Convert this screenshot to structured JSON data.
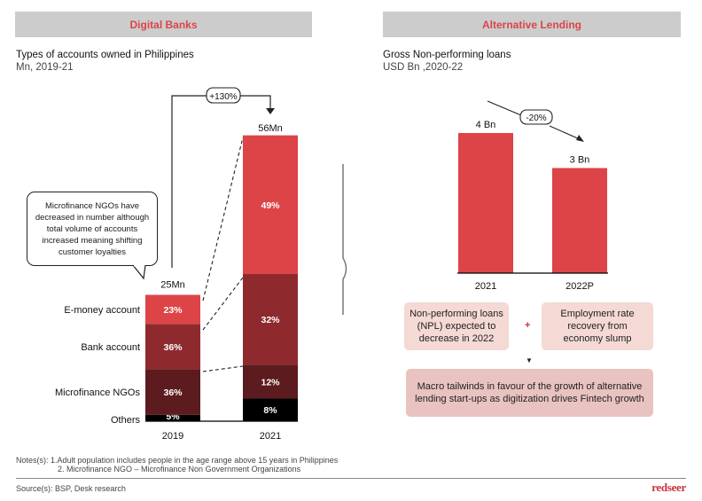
{
  "left_panel": {
    "header": "Digital Banks",
    "title": "Types of accounts owned in Philippines",
    "subtitle": "Mn, 2019-21",
    "callout_text": "Microfinance NGOs have decreased in number although total volume of accounts increased meaning shifting customer loyalties",
    "growth_label": "+130%"
  },
  "right_panel": {
    "header": "Alternative Lending",
    "title": "Gross Non-performing loans",
    "subtitle": "USD Bn ,2020-22",
    "change_label": "-20%",
    "box_npl": "Non-performing loans (NPL) expected to decrease in 2022",
    "plus_sign": "+",
    "box_employment": "Employment rate recovery  from economy slump",
    "down_arrow": "▼",
    "box_macro": "Macro tailwinds in favour of the growth of alternative lending start-ups as digitization drives Fintech growth"
  },
  "footer": {
    "notes_label": "Notes(s):",
    "note_1": "1.Adult population includes people in the age range above 15 years in Philippines",
    "note_2": "2. Microfinance NGO – Microfinance Non Government Organizations",
    "source": "Source(s): BSP, Desk research",
    "logo": "redseer"
  },
  "colors": {
    "emoney": "#dd4448",
    "bank": "#8e2a2e",
    "ngo": "#5c1b1e",
    "others": "#000000",
    "npl_bar": "#dd4448",
    "header_bg": "#cccccc",
    "header_text": "#d9454a"
  },
  "chart_data": [
    {
      "type": "bar",
      "stacked": true,
      "title": "Types of accounts owned in Philippines",
      "subtitle": "Mn, 2019-21",
      "categories": [
        "2019",
        "2021"
      ],
      "totals": [
        25,
        56
      ],
      "total_labels": [
        "25Mn",
        "56Mn"
      ],
      "series": [
        {
          "name": "Others",
          "values": [
            5,
            8
          ],
          "labels": [
            "5%",
            "8%"
          ],
          "color": "#000000"
        },
        {
          "name": "Microfinance NGOs",
          "values": [
            36,
            12
          ],
          "labels": [
            "36%",
            "12%"
          ],
          "color": "#5c1b1e"
        },
        {
          "name": "Bank account",
          "values": [
            36,
            32
          ],
          "labels": [
            "36%",
            "32%"
          ],
          "color": "#8e2a2e"
        },
        {
          "name": "E-money account",
          "values": [
            23,
            49
          ],
          "labels": [
            "23%",
            "49%"
          ],
          "color": "#dd4448"
        }
      ],
      "unit": "percent share of total",
      "annotation": "+130%"
    },
    {
      "type": "bar",
      "title": "Gross Non-performing loans",
      "subtitle": "USD Bn ,2020-22",
      "categories": [
        "2021",
        "2022P"
      ],
      "values": [
        4,
        3
      ],
      "value_labels": [
        "4 Bn",
        "3 Bn"
      ],
      "annotation": "-20%"
    }
  ]
}
